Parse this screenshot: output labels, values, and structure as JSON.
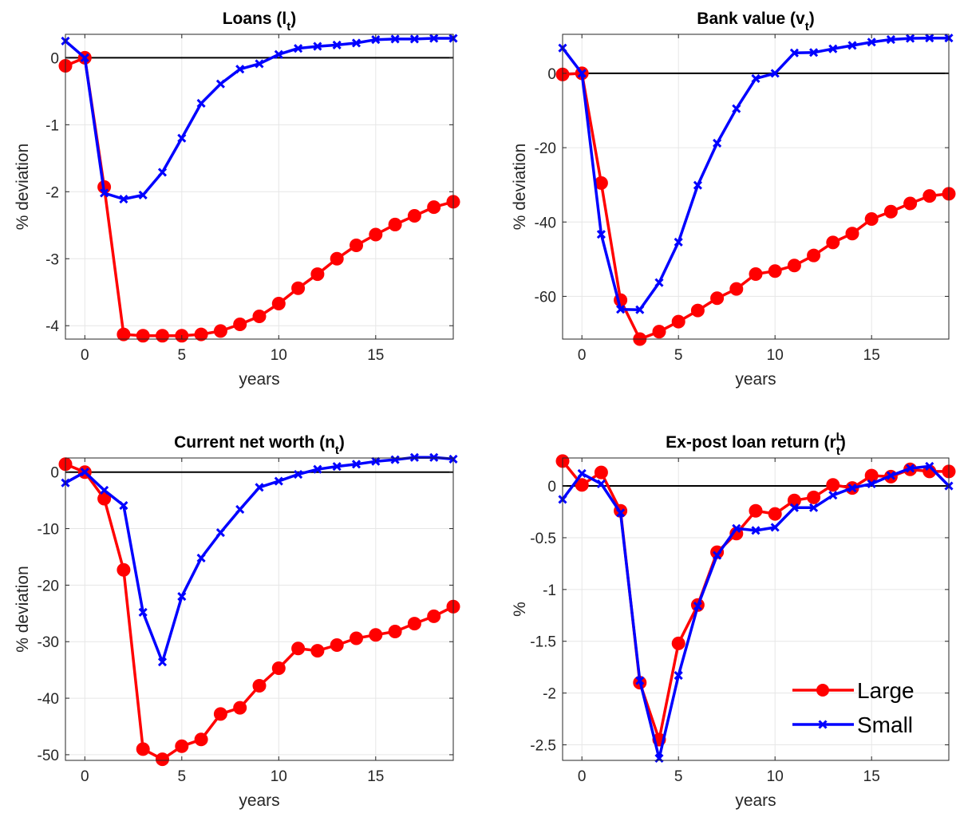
{
  "colors": {
    "large": "#ff0000",
    "small": "#0000ff",
    "zero_line": "#000000",
    "grid": "#e6e6e6"
  },
  "legend": {
    "placement": "bottom-right of panel 4",
    "entries": [
      "Large",
      "Small"
    ]
  },
  "chart_data": [
    {
      "type": "line",
      "title": "Loans (l",
      "title_sub": "t",
      "title_sup": "",
      "title_close": ")",
      "xlabel": "years",
      "ylabel": "% deviation",
      "xlim": [
        -1,
        19
      ],
      "ylim": [
        -4.2,
        0.35
      ],
      "xticks": [
        0,
        5,
        10,
        15
      ],
      "yticks": [
        0,
        -1,
        -2,
        -3,
        -4
      ],
      "grid": true,
      "x": [
        -1,
        0,
        1,
        2,
        3,
        4,
        5,
        6,
        7,
        8,
        9,
        10,
        11,
        12,
        13,
        14,
        15,
        16,
        17,
        18,
        19
      ],
      "series": [
        {
          "name": "Large",
          "marker": "circle",
          "values": [
            -0.12,
            0.0,
            -1.93,
            -4.13,
            -4.15,
            -4.15,
            -4.15,
            -4.13,
            -4.08,
            -3.98,
            -3.86,
            -3.67,
            -3.44,
            -3.23,
            -3.0,
            -2.8,
            -2.64,
            -2.49,
            -2.36,
            -2.23,
            -2.15
          ]
        },
        {
          "name": "Small",
          "marker": "x",
          "values": [
            0.25,
            0.0,
            -2.02,
            -2.11,
            -2.05,
            -1.71,
            -1.2,
            -0.68,
            -0.39,
            -0.17,
            -0.09,
            0.05,
            0.14,
            0.17,
            0.19,
            0.22,
            0.27,
            0.28,
            0.28,
            0.29,
            0.29
          ]
        }
      ]
    },
    {
      "type": "line",
      "title": "Bank value (v",
      "title_sub": "t",
      "title_sup": "",
      "title_close": ")",
      "xlabel": "years",
      "ylabel": "% deviation",
      "xlim": [
        -1,
        19
      ],
      "ylim": [
        -71.5,
        10.5
      ],
      "xticks": [
        0,
        5,
        10,
        15
      ],
      "yticks": [
        0,
        -20,
        -40,
        -60
      ],
      "grid": true,
      "x": [
        -1,
        0,
        1,
        2,
        3,
        4,
        5,
        6,
        7,
        8,
        9,
        10,
        11,
        12,
        13,
        14,
        15,
        16,
        17,
        18,
        19
      ],
      "series": [
        {
          "name": "Large",
          "marker": "circle",
          "values": [
            -0.3,
            0.0,
            -29.5,
            -61.0,
            -71.5,
            -69.5,
            -66.8,
            -63.8,
            -60.5,
            -58.0,
            -54.0,
            -53.2,
            -51.7,
            -49.0,
            -45.5,
            -43.1,
            -39.2,
            -37.2,
            -35.0,
            -33.0,
            -32.4
          ]
        },
        {
          "name": "Small",
          "marker": "x",
          "values": [
            6.8,
            0.0,
            -43.3,
            -63.5,
            -63.6,
            -56.3,
            -45.4,
            -30.1,
            -18.8,
            -9.5,
            -1.4,
            0.0,
            5.5,
            5.6,
            6.6,
            7.5,
            8.4,
            9.1,
            9.4,
            9.5,
            9.5
          ]
        }
      ]
    },
    {
      "type": "line",
      "title": "Current net worth (n",
      "title_sub": "t",
      "title_sup": "",
      "title_close": ")",
      "xlabel": "years",
      "ylabel": "% deviation",
      "xlim": [
        -1,
        19
      ],
      "ylim": [
        -51,
        2.5
      ],
      "xticks": [
        0,
        5,
        10,
        15
      ],
      "yticks": [
        0,
        -10,
        -20,
        -30,
        -40,
        -50
      ],
      "grid": true,
      "x": [
        -1,
        0,
        1,
        2,
        3,
        4,
        5,
        6,
        7,
        8,
        9,
        10,
        11,
        12,
        13,
        14,
        15,
        16,
        17,
        18,
        19
      ],
      "series": [
        {
          "name": "Large",
          "marker": "circle",
          "values": [
            1.4,
            0.0,
            -4.7,
            -17.3,
            -49.0,
            -50.8,
            -48.5,
            -47.3,
            -42.8,
            -41.7,
            -37.8,
            -34.7,
            -31.2,
            -31.6,
            -30.6,
            -29.4,
            -28.8,
            -28.2,
            -26.8,
            -25.5,
            -23.8
          ]
        },
        {
          "name": "Small",
          "marker": "x",
          "values": [
            -1.9,
            0.0,
            -3.2,
            -5.9,
            -24.8,
            -33.6,
            -22.0,
            -15.2,
            -10.7,
            -6.6,
            -2.7,
            -1.6,
            -0.4,
            0.5,
            1.0,
            1.4,
            1.9,
            2.2,
            2.6,
            2.6,
            2.3
          ]
        }
      ]
    },
    {
      "type": "line",
      "title": "Ex-post loan return (r",
      "title_sub": "t",
      "title_sup": "L",
      "title_close": ")",
      "xlabel": "years",
      "ylabel": "%",
      "xlim": [
        -1,
        19
      ],
      "ylim": [
        -2.65,
        0.27
      ],
      "xticks": [
        0,
        5,
        10,
        15
      ],
      "yticks": [
        0,
        -0.5,
        -1,
        -1.5,
        -2,
        -2.5
      ],
      "grid": true,
      "x": [
        -1,
        0,
        1,
        2,
        3,
        4,
        5,
        6,
        7,
        8,
        9,
        10,
        11,
        12,
        13,
        14,
        15,
        16,
        17,
        18,
        19
      ],
      "series": [
        {
          "name": "Large",
          "marker": "circle",
          "values": [
            0.24,
            0.01,
            0.13,
            -0.24,
            -1.9,
            -2.45,
            -1.52,
            -1.15,
            -0.64,
            -0.46,
            -0.24,
            -0.27,
            -0.14,
            -0.11,
            0.01,
            -0.02,
            0.1,
            0.09,
            0.16,
            0.14,
            0.14
          ]
        },
        {
          "name": "Small",
          "marker": "x",
          "values": [
            -0.13,
            0.12,
            0.02,
            -0.26,
            -1.88,
            -2.63,
            -1.83,
            -1.16,
            -0.67,
            -0.41,
            -0.43,
            -0.4,
            -0.21,
            -0.21,
            -0.09,
            -0.02,
            0.02,
            0.1,
            0.17,
            0.19,
            0.0
          ]
        }
      ]
    }
  ]
}
